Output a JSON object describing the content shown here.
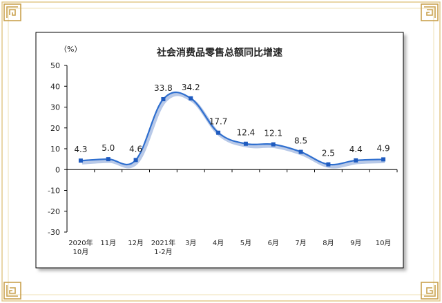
{
  "chart_data": {
    "type": "line",
    "title": "社会消费品零售总额同比增速",
    "unit_label": "（%）",
    "categories": [
      [
        "2020年",
        "10月"
      ],
      [
        "11月"
      ],
      [
        "12月"
      ],
      [
        "2021年",
        "1-2月"
      ],
      [
        "3月"
      ],
      [
        "4月"
      ],
      [
        "5月"
      ],
      [
        "6月"
      ],
      [
        "7月"
      ],
      [
        "8月"
      ],
      [
        "9月"
      ],
      [
        "10月"
      ]
    ],
    "values": [
      4.3,
      5.0,
      4.6,
      33.8,
      34.2,
      17.7,
      12.4,
      12.1,
      8.5,
      2.5,
      4.4,
      4.9
    ],
    "value_labels": [
      "4.3",
      "5.0",
      "4.6",
      "33.8",
      "34.2",
      "17.7",
      "12.4",
      "12.1",
      "8.5",
      "2.5",
      "4.4",
      "4.9"
    ],
    "y_ticks": [
      "50",
      "40",
      "30",
      "20",
      "10",
      "0",
      "-10",
      "-20",
      "-30"
    ],
    "ylim": [
      -30,
      50
    ],
    "grid": false,
    "colors": {
      "line": "#2f6fcf",
      "marker": "#1f5bbf",
      "frame_gold": "#d9b86a"
    }
  }
}
